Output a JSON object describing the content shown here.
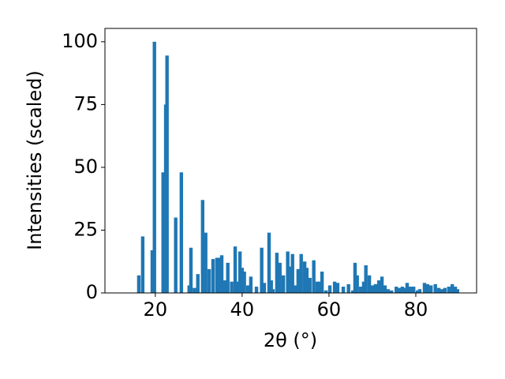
{
  "chart_data": {
    "type": "bar",
    "color": "#1f77b4",
    "x_label": "2θ (°)",
    "y_label": "Intensities (scaled)",
    "x": [
      16.2,
      17.1,
      19.3,
      19.8,
      21.8,
      22.4,
      22.7,
      24.7,
      26.0,
      27.8,
      28.2,
      29.0,
      29.8,
      30.9,
      31.6,
      32.4,
      33.3,
      34.2,
      34.7,
      35.3,
      36.0,
      36.7,
      37.6,
      38.4,
      38.9,
      39.5,
      40.0,
      40.5,
      41.3,
      42.0,
      43.3,
      44.5,
      45.1,
      46.2,
      46.7,
      47.1,
      48.0,
      48.7,
      49.5,
      50.5,
      51.1,
      51.6,
      52.2,
      52.9,
      53.6,
      54.4,
      54.9,
      55.6,
      56.5,
      57.3,
      57.8,
      58.4,
      59.3,
      60.2,
      61.3,
      62.0,
      63.3,
      64.5,
      65.5,
      66.0,
      66.5,
      67.3,
      68.0,
      68.5,
      69.3,
      70.0,
      70.7,
      71.5,
      72.2,
      72.9,
      73.6,
      74.4,
      75.5,
      76.2,
      76.9,
      77.5,
      78.0,
      78.7,
      79.5,
      80.4,
      80.9,
      82.0,
      82.7,
      83.5,
      84.5,
      85.3,
      86.0,
      86.7,
      87.6,
      88.4,
      89.1,
      89.6
    ],
    "values": [
      7,
      22.5,
      17,
      100,
      48,
      75,
      94.5,
      30,
      48,
      3,
      18,
      2,
      7.5,
      37,
      24,
      9.5,
      13.5,
      14,
      14,
      15,
      5,
      12,
      4.5,
      18.5,
      4.5,
      16.5,
      10,
      8.5,
      3,
      6.5,
      2.5,
      18,
      4,
      24,
      5,
      1.5,
      16,
      12,
      7,
      16.5,
      10.5,
      15.5,
      3,
      9.5,
      15.5,
      12.5,
      10,
      6,
      13,
      4.5,
      4.5,
      8.5,
      1,
      3,
      4.5,
      4,
      2.5,
      3.5,
      1,
      12,
      7,
      2.5,
      4.5,
      11,
      7,
      3,
      3.5,
      5,
      6.5,
      3,
      1.5,
      1,
      2.5,
      2,
      2.5,
      2,
      4,
      2.5,
      2.5,
      1,
      1.5,
      4,
      3.5,
      3,
      3.5,
      2,
      1.5,
      2,
      2.5,
      3.5,
      2.5,
      1.5
    ],
    "xlim": [
      8.4,
      94
    ],
    "ylim": [
      0,
      105.3
    ],
    "xticks": [
      20,
      40,
      60,
      80
    ],
    "yticks": [
      0,
      25,
      50,
      75,
      100
    ]
  }
}
